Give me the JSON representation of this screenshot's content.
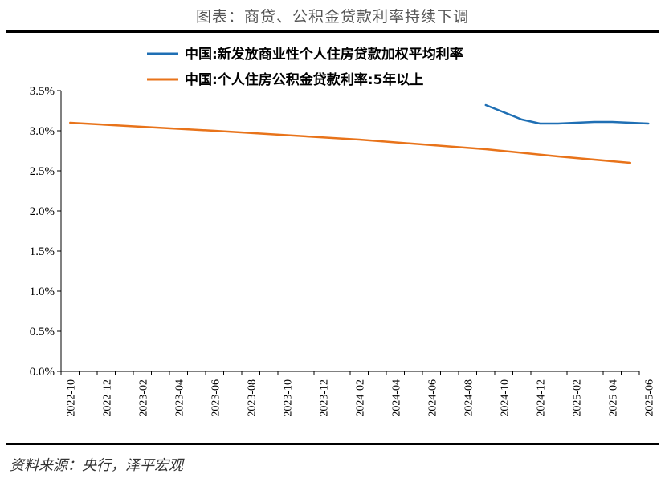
{
  "title": "图表：商贷、公积金贷款利率持续下调",
  "source": "资料来源：央行，泽平宏观",
  "chart_data": {
    "type": "line",
    "x_ticks": [
      "2022-10",
      "2022-12",
      "2023-02",
      "2023-04",
      "2023-06",
      "2023-08",
      "2023-10",
      "2023-12",
      "2024-02",
      "2024-04",
      "2024-06",
      "2024-08",
      "2024-10",
      "2024-12",
      "2025-02",
      "2025-04",
      "2025-06"
    ],
    "y_ticks": [
      "0.0%",
      "0.5%",
      "1.0%",
      "1.5%",
      "2.0%",
      "2.5%",
      "3.0%",
      "3.5%"
    ],
    "ylim": [
      0,
      3.5
    ],
    "y_unit": "%",
    "grid": false,
    "legend_position": "top",
    "series": [
      {
        "name": "中国:新发放商业性个人住房贷款加权平均利率",
        "color": "#1f6fb4",
        "points": [
          {
            "x": "2024-09",
            "y": 3.32
          },
          {
            "x": "2024-10",
            "y": 3.23
          },
          {
            "x": "2024-11",
            "y": 3.14
          },
          {
            "x": "2024-12",
            "y": 3.09
          },
          {
            "x": "2025-01",
            "y": 3.09
          },
          {
            "x": "2025-02",
            "y": 3.1
          },
          {
            "x": "2025-03",
            "y": 3.11
          },
          {
            "x": "2025-04",
            "y": 3.11
          },
          {
            "x": "2025-05",
            "y": 3.1
          },
          {
            "x": "2025-06",
            "y": 3.09
          }
        ]
      },
      {
        "name": "中国:个人住房公积金贷款利率:5年以上",
        "color": "#e8731a",
        "points": [
          {
            "x": "2022-10",
            "y": 3.1
          },
          {
            "x": "2023-06",
            "y": 3.0
          },
          {
            "x": "2024-02",
            "y": 2.89
          },
          {
            "x": "2024-09",
            "y": 2.77
          },
          {
            "x": "2025-01",
            "y": 2.68
          },
          {
            "x": "2025-05",
            "y": 2.6
          }
        ]
      }
    ]
  }
}
